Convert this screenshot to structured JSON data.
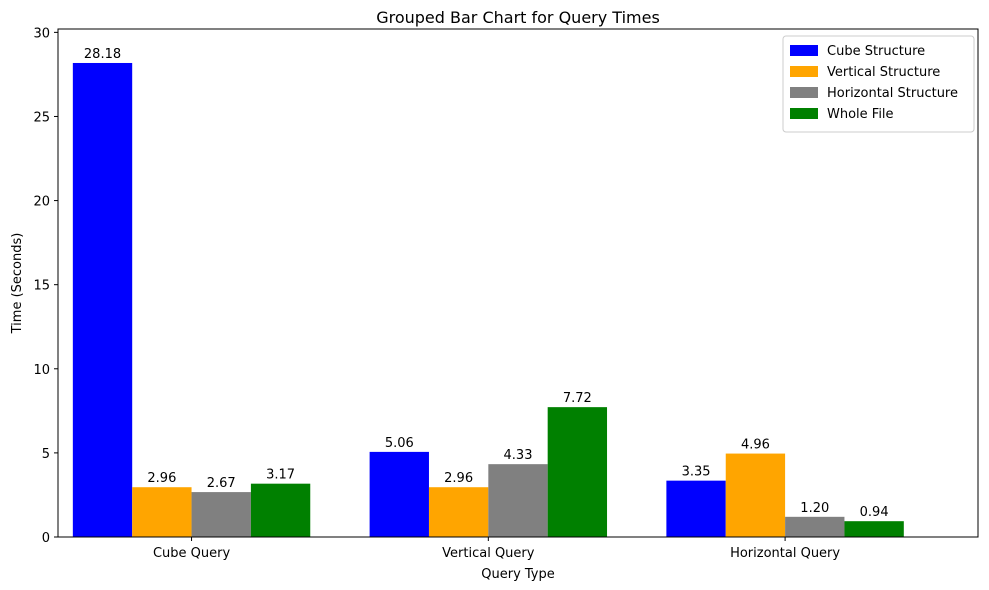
{
  "chart_data": {
    "type": "bar",
    "title": "Grouped Bar Chart for Query Times",
    "xlabel": "Query Type",
    "ylabel": "Time (Seconds)",
    "categories": [
      "Cube Query",
      "Vertical Query",
      "Horizontal Query"
    ],
    "ylim": [
      0,
      30.2
    ],
    "yticks": [
      0,
      5,
      10,
      15,
      20,
      25,
      30
    ],
    "grid": false,
    "legend_position": "top-right",
    "series": [
      {
        "name": "Cube Structure",
        "color": "#0000ff",
        "values": [
          28.18,
          5.06,
          3.35
        ],
        "labels": [
          "28.18",
          "5.06",
          "3.35"
        ]
      },
      {
        "name": "Vertical Structure",
        "color": "#ffa500",
        "values": [
          2.96,
          2.96,
          4.96
        ],
        "labels": [
          "2.96",
          "2.96",
          "4.96"
        ]
      },
      {
        "name": "Horizontal Structure",
        "color": "#808080",
        "values": [
          2.67,
          4.33,
          1.2
        ],
        "labels": [
          "2.67",
          "4.33",
          "1.20"
        ]
      },
      {
        "name": "Whole File",
        "color": "#008000",
        "values": [
          3.17,
          7.72,
          0.94
        ],
        "labels": [
          "3.17",
          "7.72",
          "0.94"
        ]
      }
    ]
  }
}
